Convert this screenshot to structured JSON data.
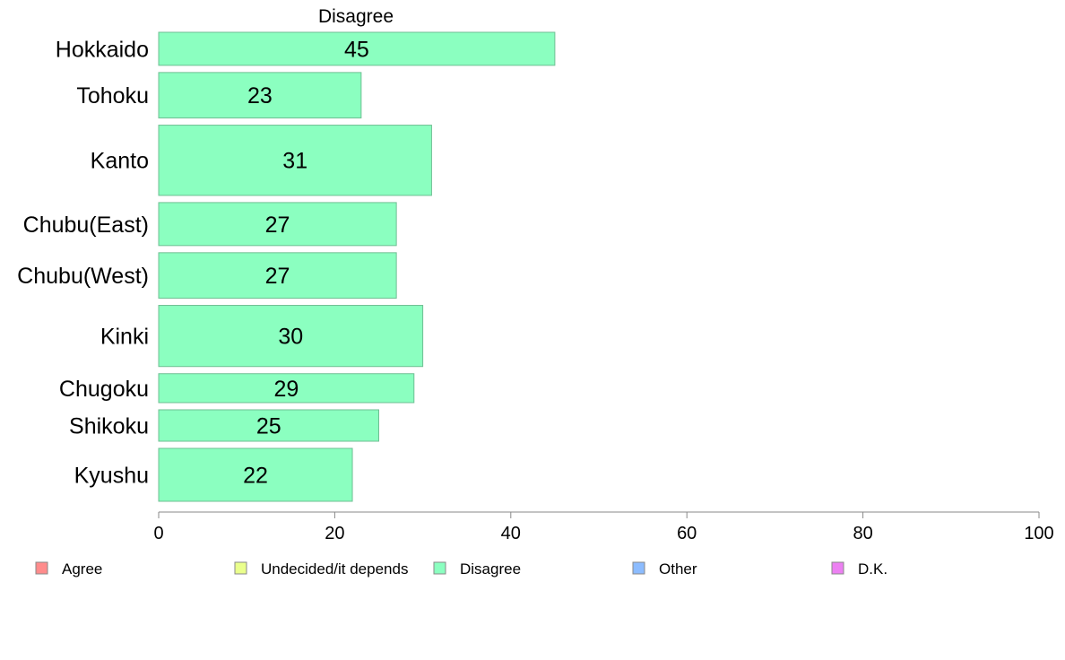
{
  "chart_data": {
    "type": "bar",
    "orientation": "horizontal",
    "title": "Disagree",
    "categories": [
      "Hokkaido",
      "Tohoku",
      "Kanto",
      "Chubu(East)",
      "Chubu(West)",
      "Kinki",
      "Chugoku",
      "Shikoku",
      "Kyushu"
    ],
    "values": [
      45,
      23,
      31,
      27,
      27,
      30,
      29,
      25,
      22
    ],
    "value_labels": [
      "45",
      "23",
      "31",
      "27",
      "27",
      "30",
      "29",
      "25",
      "22"
    ],
    "relative_widths": [
      0.4,
      0.55,
      0.85,
      0.52,
      0.55,
      0.74,
      0.35,
      0.38,
      0.64
    ],
    "xlim": [
      0,
      100
    ],
    "xticks": [
      0,
      20,
      40,
      60,
      80,
      100
    ],
    "xtick_labels": [
      "0",
      "20",
      "40",
      "60",
      "80",
      "100"
    ],
    "bar_color": "#8bffc0",
    "bar_stroke": "#6fbf93",
    "legend": {
      "position": "bottom",
      "items": [
        {
          "label": "Agree",
          "color": "#ff8c8c"
        },
        {
          "label": "Undecided/it depends",
          "color": "#eaff8c"
        },
        {
          "label": "Disagree",
          "color": "#8bffc0"
        },
        {
          "label": "Other",
          "color": "#8cbcff"
        },
        {
          "label": "D.K.",
          "color": "#ec80f2"
        }
      ]
    }
  }
}
